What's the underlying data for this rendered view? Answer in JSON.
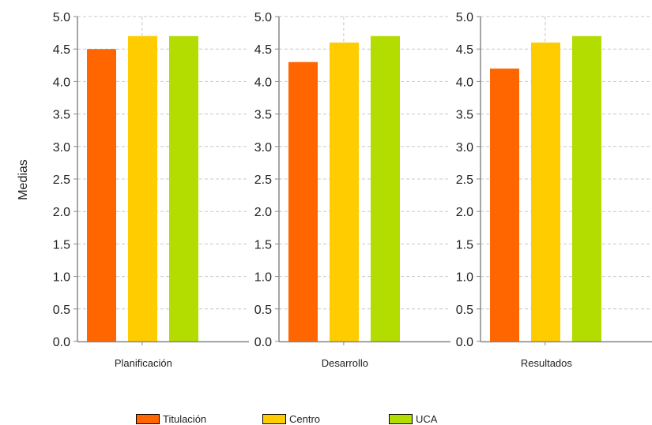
{
  "chart_data": {
    "type": "bar",
    "ylabel": "Medias",
    "ylim": [
      0,
      5
    ],
    "yticks": [
      "0.0",
      "0.5",
      "1.0",
      "1.5",
      "2.0",
      "2.5",
      "3.0",
      "3.5",
      "4.0",
      "4.5",
      "5.0"
    ],
    "grid": true,
    "legend_position": "bottom",
    "panels": [
      {
        "category": "Planificación",
        "values": [
          4.5,
          4.7,
          4.7
        ]
      },
      {
        "category": "Desarrollo",
        "values": [
          4.3,
          4.6,
          4.7
        ]
      },
      {
        "category": "Resultados",
        "values": [
          4.2,
          4.6,
          4.7
        ]
      }
    ],
    "series": [
      {
        "name": "Titulación",
        "color": "#ff6600"
      },
      {
        "name": "Centro",
        "color": "#ffcc00"
      },
      {
        "name": "UCA",
        "color": "#b3dc00"
      }
    ]
  }
}
